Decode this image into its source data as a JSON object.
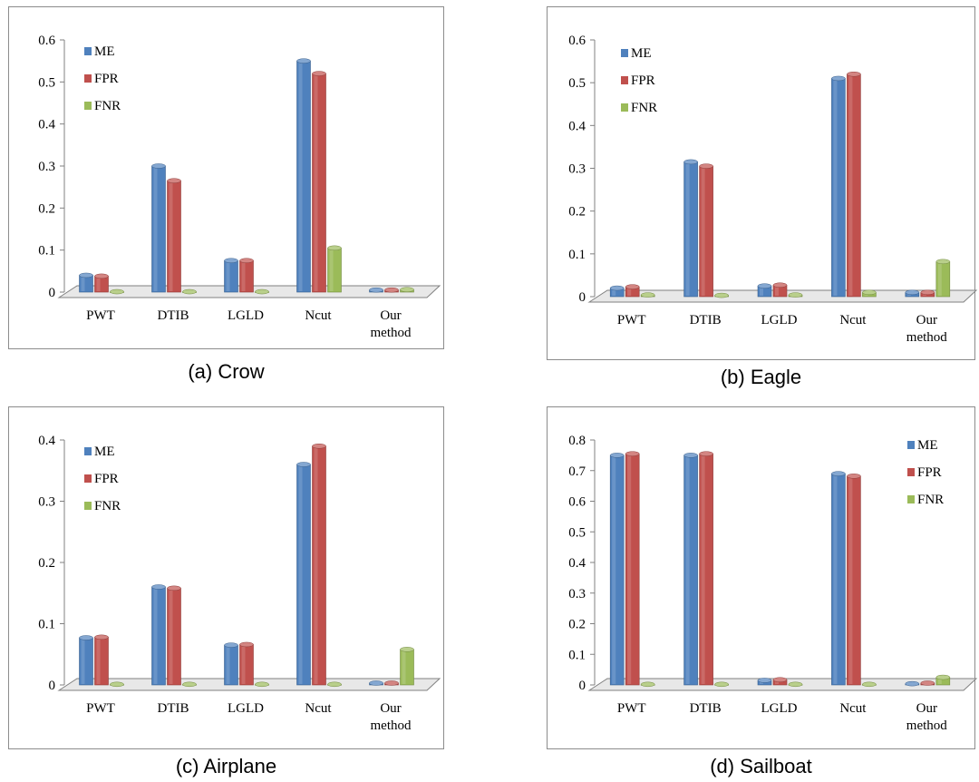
{
  "colors": {
    "ME": "#4f81bd",
    "FPR": "#c0504d",
    "FNR": "#9bbb59"
  },
  "chart_data": [
    {
      "type": "bar",
      "caption": "(a) Crow",
      "categories": [
        [
          "PWT"
        ],
        [
          "DTIB"
        ],
        [
          "LGLD"
        ],
        [
          "Ncut"
        ],
        [
          "Our",
          "method"
        ]
      ],
      "ylim": [
        0,
        0.6
      ],
      "yticks": [
        "0",
        "0.1",
        "0.2",
        "0.3",
        "0.4",
        "0.5",
        "0.6"
      ],
      "legend_position": "top-left",
      "series": [
        {
          "name": "ME",
          "values": [
            0.04,
            0.3,
            0.075,
            0.55,
            0.005
          ]
        },
        {
          "name": "FPR",
          "values": [
            0.038,
            0.265,
            0.075,
            0.52,
            0.005
          ]
        },
        {
          "name": "FNR",
          "values": [
            0.001,
            0.001,
            0.001,
            0.105,
            0.006
          ]
        }
      ]
    },
    {
      "type": "bar",
      "caption": "(b) Eagle",
      "categories": [
        [
          "PWT"
        ],
        [
          "DTIB"
        ],
        [
          "LGLD"
        ],
        [
          "Ncut"
        ],
        [
          "Our",
          "method"
        ]
      ],
      "ylim": [
        0,
        0.6
      ],
      "yticks": [
        "0",
        "0.1",
        "0.2",
        "0.3",
        "0.4",
        "0.5",
        "0.6"
      ],
      "legend_position": "top-left",
      "series": [
        {
          "name": "ME",
          "values": [
            0.02,
            0.315,
            0.025,
            0.51,
            0.01
          ]
        },
        {
          "name": "FPR",
          "values": [
            0.023,
            0.305,
            0.027,
            0.52,
            0.01
          ]
        },
        {
          "name": "FNR",
          "values": [
            0.004,
            0.003,
            0.004,
            0.01,
            0.082
          ]
        }
      ]
    },
    {
      "type": "bar",
      "caption": "(c) Airplane",
      "categories": [
        [
          "PWT"
        ],
        [
          "DTIB"
        ],
        [
          "LGLD"
        ],
        [
          "Ncut"
        ],
        [
          "Our",
          "method"
        ]
      ],
      "ylim": [
        0,
        0.4
      ],
      "yticks": [
        "0",
        "0.1",
        "0.2",
        "0.3",
        "0.4"
      ],
      "legend_position": "top-left",
      "series": [
        {
          "name": "ME",
          "values": [
            0.077,
            0.16,
            0.065,
            0.36,
            0.003
          ]
        },
        {
          "name": "FPR",
          "values": [
            0.078,
            0.158,
            0.066,
            0.39,
            0.003
          ]
        },
        {
          "name": "FNR",
          "values": [
            0.001,
            0.001,
            0.001,
            0.001,
            0.058
          ]
        }
      ]
    },
    {
      "type": "bar",
      "caption": "(d) Sailboat",
      "categories": [
        [
          "PWT"
        ],
        [
          "DTIB"
        ],
        [
          "LGLD"
        ],
        [
          "Ncut"
        ],
        [
          "Our",
          "method"
        ]
      ],
      "ylim": [
        0,
        0.8
      ],
      "yticks": [
        "0",
        "0.1",
        "0.2",
        "0.3",
        "0.4",
        "0.5",
        "0.6",
        "0.7",
        "0.8"
      ],
      "legend_position": "top-right",
      "series": [
        {
          "name": "ME",
          "values": [
            0.75,
            0.75,
            0.015,
            0.69,
            0.004
          ]
        },
        {
          "name": "FPR",
          "values": [
            0.755,
            0.755,
            0.017,
            0.682,
            0.006
          ]
        },
        {
          "name": "FNR",
          "values": [
            0.002,
            0.002,
            0.002,
            0.002,
            0.025
          ]
        }
      ]
    }
  ]
}
